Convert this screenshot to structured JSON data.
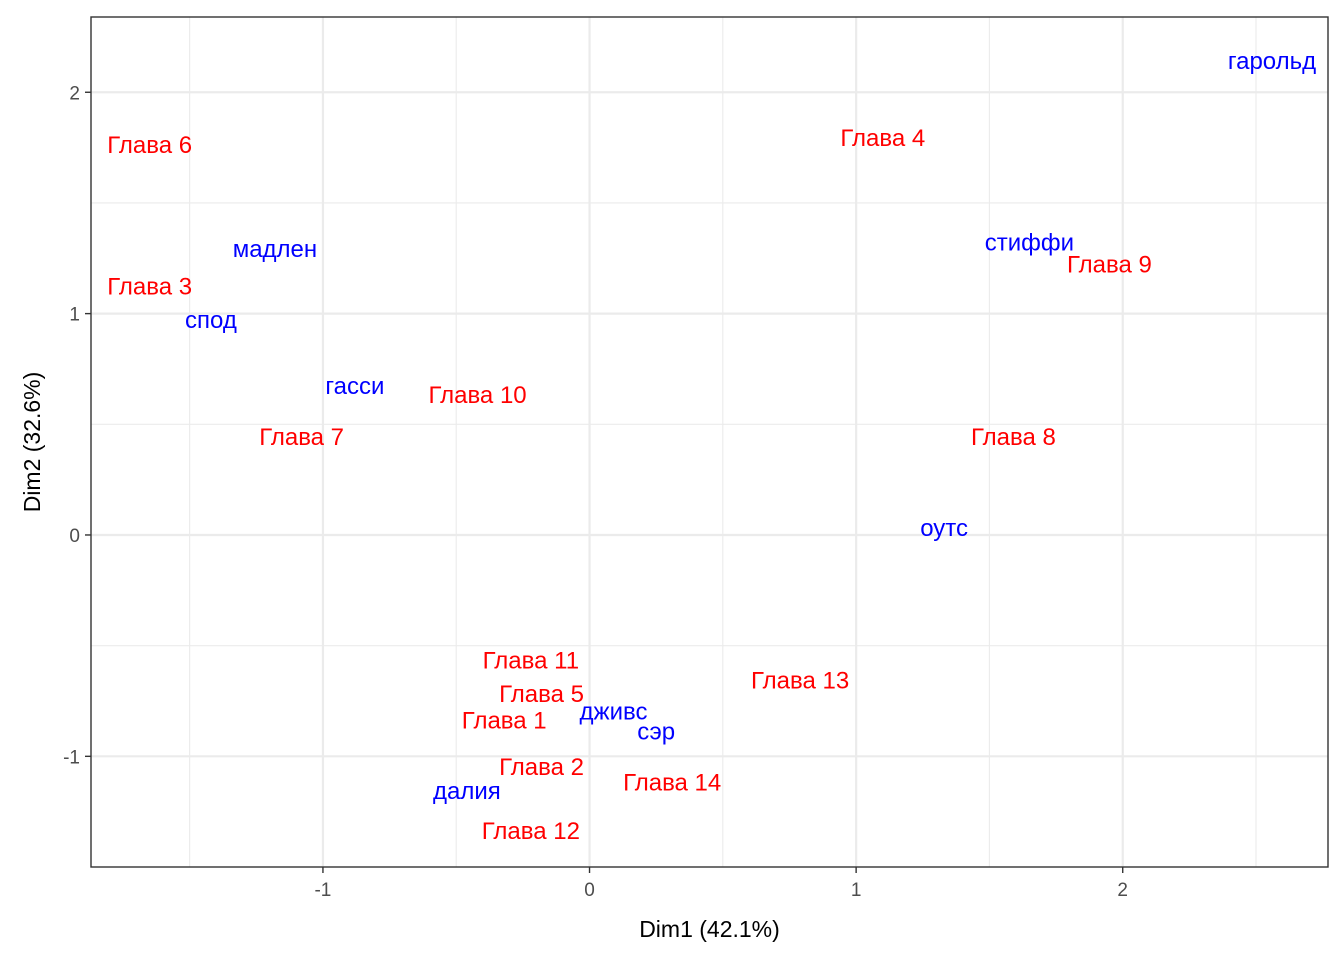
{
  "chart_data": {
    "type": "scatter",
    "title": "",
    "xlabel": "Dim1 (42.1%)",
    "ylabel": "Dim2 (32.6%)",
    "xlim": [
      -1.87,
      2.77
    ],
    "ylim": [
      -1.5,
      2.34
    ],
    "x_ticks": [
      -1,
      0,
      1,
      2
    ],
    "y_ticks": [
      -1,
      0,
      1,
      2
    ],
    "x_tick_labels": [
      "-1",
      "0",
      "1",
      "2"
    ],
    "y_tick_labels": [
      "-1",
      "0",
      "1",
      "2"
    ],
    "x_minor_ticks": [
      -1.5,
      -0.5,
      0.5,
      1.5,
      2.5
    ],
    "y_minor_ticks": [
      -0.5,
      0.5,
      1.5
    ],
    "grid": true,
    "colors": {
      "rows": "#ff0000",
      "columns": "#0000ff",
      "grid": "#ebebeb",
      "panel_border": "#333333"
    },
    "series": [
      {
        "color": "#ff0000",
        "points": [
          {
            "label": "Глава 1",
            "x": -0.32,
            "y": -0.84
          },
          {
            "label": "Глава 2",
            "x": -0.18,
            "y": -1.05
          },
          {
            "label": "Глава 3",
            "x": -1.65,
            "y": 1.12
          },
          {
            "label": "Глава 4",
            "x": 1.1,
            "y": 1.79
          },
          {
            "label": "Глава 5",
            "x": -0.18,
            "y": -0.72
          },
          {
            "label": "Глава 6",
            "x": -1.65,
            "y": 1.76
          },
          {
            "label": "Глава 7",
            "x": -1.08,
            "y": 0.44
          },
          {
            "label": "Глава 8",
            "x": 1.59,
            "y": 0.44
          },
          {
            "label": "Глава 9",
            "x": 1.95,
            "y": 1.22
          },
          {
            "label": "Глава 10",
            "x": -0.42,
            "y": 0.63
          },
          {
            "label": "Глава 11",
            "x": -0.22,
            "y": -0.57
          },
          {
            "label": "Глава 12",
            "x": -0.22,
            "y": -1.34
          },
          {
            "label": "Глава 13",
            "x": 0.79,
            "y": -0.66
          },
          {
            "label": "Глава 14",
            "x": 0.31,
            "y": -1.12
          }
        ]
      },
      {
        "color": "#0000ff",
        "points": [
          {
            "label": "гарольд",
            "x": 2.56,
            "y": 2.14
          },
          {
            "label": "мадлен",
            "x": -1.18,
            "y": 1.29
          },
          {
            "label": "спод",
            "x": -1.42,
            "y": 0.97
          },
          {
            "label": "гасси",
            "x": -0.88,
            "y": 0.67
          },
          {
            "label": "стиффи",
            "x": 1.65,
            "y": 1.32
          },
          {
            "label": "оутс",
            "x": 1.33,
            "y": 0.03
          },
          {
            "label": "дживс",
            "x": 0.09,
            "y": -0.8
          },
          {
            "label": "сэр",
            "x": 0.25,
            "y": -0.89
          },
          {
            "label": "далия",
            "x": -0.46,
            "y": -1.16
          }
        ]
      }
    ]
  }
}
